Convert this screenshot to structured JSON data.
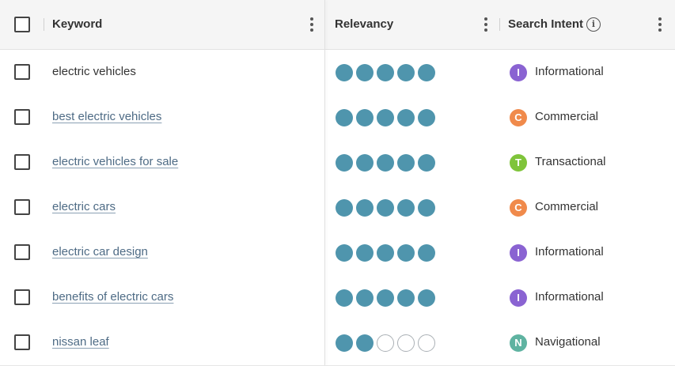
{
  "header": {
    "keyword_label": "Keyword",
    "relevancy_label": "Relevancy",
    "intent_label": "Search Intent",
    "intent_info_icon": "i"
  },
  "rows": [
    {
      "keyword": "electric vehicles",
      "linked": false,
      "relevancy": 5,
      "intent": "Informational",
      "intent_letter": "I",
      "intent_color": "#8a63d2"
    },
    {
      "keyword": "best electric vehicles",
      "linked": true,
      "relevancy": 5,
      "intent": "Commercial",
      "intent_letter": "C",
      "intent_color": "#f08a4b"
    },
    {
      "keyword": "electric vehicles for sale",
      "linked": true,
      "relevancy": 5,
      "intent": "Transactional",
      "intent_letter": "T",
      "intent_color": "#7fc43a"
    },
    {
      "keyword": "electric cars",
      "linked": true,
      "relevancy": 5,
      "intent": "Commercial",
      "intent_letter": "C",
      "intent_color": "#f08a4b"
    },
    {
      "keyword": "electric car design",
      "linked": true,
      "relevancy": 5,
      "intent": "Informational",
      "intent_letter": "I",
      "intent_color": "#8a63d2"
    },
    {
      "keyword": "benefits of electric cars",
      "linked": true,
      "relevancy": 5,
      "intent": "Informational",
      "intent_letter": "I",
      "intent_color": "#8a63d2"
    },
    {
      "keyword": "nissan leaf",
      "linked": true,
      "relevancy": 2,
      "intent": "Navigational",
      "intent_letter": "N",
      "intent_color": "#5fb3a1"
    }
  ],
  "relevancy_max": 5,
  "colors": {
    "relevancy_on": "#4f95ad",
    "link": "#4e6b85",
    "header_bg": "#f5f5f5"
  }
}
